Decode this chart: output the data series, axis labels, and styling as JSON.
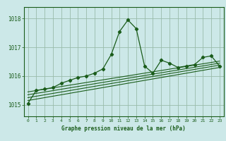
{
  "title": "Graphe pression niveau de la mer (hPa)",
  "bg_color": "#cce8e8",
  "line_color": "#1a5c1a",
  "grid_color": "#99bbaa",
  "x_ticks": [
    0,
    1,
    2,
    3,
    4,
    5,
    6,
    7,
    8,
    9,
    10,
    11,
    12,
    13,
    14,
    15,
    16,
    17,
    18,
    19,
    20,
    21,
    22,
    23
  ],
  "y_ticks": [
    1015,
    1016,
    1017,
    1018
  ],
  "ylim": [
    1014.6,
    1018.4
  ],
  "xlim": [
    -0.5,
    23.5
  ],
  "main_line": [
    [
      0,
      1015.05
    ],
    [
      1,
      1015.5
    ],
    [
      2,
      1015.55
    ],
    [
      3,
      1015.6
    ],
    [
      4,
      1015.75
    ],
    [
      5,
      1015.85
    ],
    [
      6,
      1015.95
    ],
    [
      7,
      1016.0
    ],
    [
      8,
      1016.1
    ],
    [
      9,
      1016.25
    ],
    [
      10,
      1016.75
    ],
    [
      11,
      1017.55
    ],
    [
      12,
      1017.95
    ],
    [
      13,
      1017.65
    ],
    [
      14,
      1016.35
    ],
    [
      15,
      1016.1
    ],
    [
      16,
      1016.55
    ],
    [
      17,
      1016.45
    ],
    [
      18,
      1016.3
    ],
    [
      19,
      1016.35
    ],
    [
      20,
      1016.4
    ],
    [
      21,
      1016.65
    ],
    [
      22,
      1016.7
    ],
    [
      23,
      1016.35
    ]
  ],
  "trend_lines": [
    [
      [
        0,
        1015.15
      ],
      [
        23,
        1016.3
      ]
    ],
    [
      [
        0,
        1015.25
      ],
      [
        23,
        1016.38
      ]
    ],
    [
      [
        0,
        1015.35
      ],
      [
        23,
        1016.45
      ]
    ],
    [
      [
        0,
        1015.45
      ],
      [
        23,
        1016.52
      ]
    ]
  ]
}
